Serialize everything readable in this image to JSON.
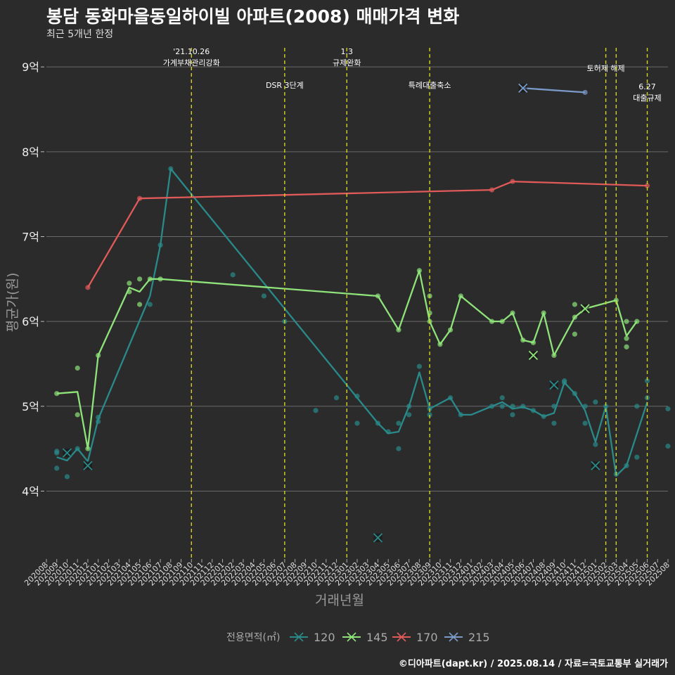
{
  "header": {
    "title": "봉담 동화마을동일하이빌 아파트(2008) 매매가격 변화",
    "subtitle": "최근 5개년 한정"
  },
  "caption": "©디아파트(dapt.kr) / 2025.08.14 / 자료=국토교통부 실거래가",
  "colors": {
    "background": "#2b2b2b",
    "grid": "#6a6a6a",
    "event_line": "#d4d420",
    "s120": "#2a8a8a",
    "s145": "#8fe37a",
    "s170": "#e05a5a",
    "s215": "#7a9ac8"
  },
  "chart_data": {
    "type": "line",
    "xlabel": "거래년월",
    "ylabel": "평균가(원)",
    "ylim": [
      3.2,
      9.25
    ],
    "y_ticks": [
      {
        "v": 4,
        "label": "4억"
      },
      {
        "v": 5,
        "label": "5억"
      },
      {
        "v": 6,
        "label": "6억"
      },
      {
        "v": 7,
        "label": "7억"
      },
      {
        "v": 8,
        "label": "8억"
      },
      {
        "v": 9,
        "label": "9억"
      }
    ],
    "x_ticks": [
      "202008",
      "202009",
      "202010",
      "202011",
      "202012",
      "202101",
      "202102",
      "202103",
      "202104",
      "202105",
      "202106",
      "202107",
      "202108",
      "202109",
      "202110",
      "202111",
      "202112",
      "202201",
      "202202",
      "202203",
      "202204",
      "202205",
      "202206",
      "202207",
      "202208",
      "202209",
      "202210",
      "202211",
      "202212",
      "202301",
      "202302",
      "202303",
      "202304",
      "202305",
      "202306",
      "202307",
      "202308",
      "202309",
      "202310",
      "202311",
      "202312",
      "202401",
      "202402",
      "202403",
      "202404",
      "202405",
      "202406",
      "202407",
      "202408",
      "202409",
      "202410",
      "202411",
      "202412",
      "202501",
      "202502",
      "202503",
      "202504",
      "202505",
      "202506",
      "202507",
      "202508"
    ],
    "grid": true,
    "legend": {
      "title": "전용면적(㎡)",
      "position": "bottom",
      "items": [
        "120",
        "145",
        "170",
        "215"
      ]
    },
    "events": [
      {
        "x": "2021-10",
        "label": "'21.10.26\n가계부채관리강화",
        "row": 0
      },
      {
        "x": "2022-07",
        "label": "DSR 3단계",
        "row": 2
      },
      {
        "x": "2023-01",
        "label": "1.3\n규제완화",
        "row": 0
      },
      {
        "x": "2023-09",
        "label": "특례대출축소",
        "row": 2
      },
      {
        "x": "2025-02",
        "label": "토허제 해제",
        "row": 1
      },
      {
        "x": "2025-03",
        "label": "",
        "row": 1
      },
      {
        "x": "2025-06",
        "label": "6.27\n대출규제",
        "row": 3
      }
    ],
    "series": [
      {
        "name": "120",
        "color_key": "s120",
        "line": [
          [
            "2020-09",
            4.4
          ],
          [
            "2020-10",
            4.36
          ],
          [
            "2020-11",
            4.5
          ],
          [
            "2020-12",
            4.35
          ],
          [
            "2021-01",
            4.85
          ],
          [
            "2021-06",
            6.3
          ],
          [
            "2021-07",
            6.9
          ],
          [
            "2021-08",
            7.8
          ],
          [
            "2023-04",
            4.8
          ],
          [
            "2023-05",
            4.68
          ],
          [
            "2023-06",
            4.7
          ],
          [
            "2023-07",
            5.0
          ],
          [
            "2023-08",
            5.4
          ],
          [
            "2023-09",
            4.97
          ],
          [
            "2023-11",
            5.1
          ],
          [
            "2023-12",
            4.9
          ],
          [
            "2024-01",
            4.9
          ],
          [
            "2024-03",
            5.0
          ],
          [
            "2024-04",
            5.05
          ],
          [
            "2024-05",
            4.97
          ],
          [
            "2024-06",
            4.99
          ],
          [
            "2024-07",
            4.95
          ],
          [
            "2024-08",
            4.88
          ],
          [
            "2024-09",
            4.92
          ],
          [
            "2024-10",
            5.28
          ],
          [
            "2024-11",
            5.15
          ],
          [
            "2024-12",
            4.95
          ],
          [
            "2025-01",
            4.58
          ],
          [
            "2025-02",
            5.0
          ],
          [
            "2025-03",
            4.18
          ],
          [
            "2025-04",
            4.3
          ],
          [
            "2025-06",
            5.05
          ]
        ],
        "points": [
          [
            "2020-09",
            4.47
          ],
          [
            "2020-09",
            4.45
          ],
          [
            "2020-09",
            4.27
          ],
          [
            "2020-10",
            4.17
          ],
          [
            "2020-11",
            4.5
          ],
          [
            "2021-01",
            4.87
          ],
          [
            "2021-01",
            4.82
          ],
          [
            "2021-06",
            6.2
          ],
          [
            "2021-07",
            6.9
          ],
          [
            "2021-08",
            7.8
          ],
          [
            "2022-02",
            6.55
          ],
          [
            "2022-05",
            6.3
          ],
          [
            "2022-07",
            6.0
          ],
          [
            "2022-10",
            4.95
          ],
          [
            "2022-12",
            5.1
          ],
          [
            "2023-02",
            5.12
          ],
          [
            "2023-02",
            4.8
          ],
          [
            "2023-04",
            4.8
          ],
          [
            "2023-05",
            4.7
          ],
          [
            "2023-06",
            4.8
          ],
          [
            "2023-06",
            4.5
          ],
          [
            "2023-07",
            4.9
          ],
          [
            "2023-07",
            5.0
          ],
          [
            "2023-08",
            5.47
          ],
          [
            "2023-09",
            4.97
          ],
          [
            "2023-09",
            4.9
          ],
          [
            "2023-11",
            5.1
          ],
          [
            "2023-12",
            4.9
          ],
          [
            "2024-03",
            5.0
          ],
          [
            "2024-04",
            5.1
          ],
          [
            "2024-04",
            5.0
          ],
          [
            "2024-05",
            5.0
          ],
          [
            "2024-05",
            4.9
          ],
          [
            "2024-06",
            5.0
          ],
          [
            "2024-07",
            4.95
          ],
          [
            "2024-08",
            4.88
          ],
          [
            "2024-09",
            4.8
          ],
          [
            "2024-09",
            5.0
          ],
          [
            "2024-10",
            5.28
          ],
          [
            "2024-10",
            5.3
          ],
          [
            "2024-11",
            5.15
          ],
          [
            "2024-12",
            4.8
          ],
          [
            "2024-12",
            5.0
          ],
          [
            "2025-01",
            5.05
          ],
          [
            "2025-01",
            4.55
          ],
          [
            "2025-02",
            5.0
          ],
          [
            "2025-03",
            4.2
          ],
          [
            "2025-04",
            4.3
          ],
          [
            "2025-05",
            4.4
          ],
          [
            "2025-05",
            5.0
          ],
          [
            "2025-06",
            5.3
          ],
          [
            "2025-06",
            5.1
          ],
          [
            "2025-08",
            4.97
          ],
          [
            "2025-08",
            4.53
          ]
        ],
        "crosses": [
          [
            "2020-10",
            4.45
          ],
          [
            "2020-12",
            4.3
          ],
          [
            "2023-04",
            3.45
          ],
          [
            "2024-09",
            5.25
          ],
          [
            "2025-01",
            4.3
          ]
        ]
      },
      {
        "name": "145",
        "color_key": "s145",
        "line": [
          [
            "2020-09",
            5.15
          ],
          [
            "2020-11",
            5.17
          ],
          [
            "2020-12",
            4.5
          ],
          [
            "2021-01",
            5.6
          ],
          [
            "2021-04",
            6.4
          ],
          [
            "2021-05",
            6.35
          ],
          [
            "2021-06",
            6.5
          ],
          [
            "2021-07",
            6.5
          ],
          [
            "2023-04",
            6.3
          ],
          [
            "2023-06",
            5.9
          ],
          [
            "2023-08",
            6.6
          ],
          [
            "2023-09",
            6.0
          ],
          [
            "2023-10",
            5.73
          ],
          [
            "2023-11",
            5.9
          ],
          [
            "2023-12",
            6.3
          ],
          [
            "2024-03",
            6.0
          ],
          [
            "2024-04",
            6.0
          ],
          [
            "2024-05",
            6.1
          ],
          [
            "2024-06",
            5.78
          ],
          [
            "2024-07",
            5.75
          ],
          [
            "2024-08",
            6.1
          ],
          [
            "2024-09",
            5.6
          ],
          [
            "2024-11",
            6.05
          ],
          [
            "2024-12",
            6.15
          ],
          [
            "2025-03",
            6.25
          ],
          [
            "2025-04",
            5.83
          ],
          [
            "2025-05",
            6.0
          ]
        ],
        "points": [
          [
            "2020-09",
            5.15
          ],
          [
            "2020-11",
            5.45
          ],
          [
            "2020-11",
            4.9
          ],
          [
            "2020-12",
            4.5
          ],
          [
            "2021-01",
            5.6
          ],
          [
            "2021-04",
            6.45
          ],
          [
            "2021-04",
            6.35
          ],
          [
            "2021-05",
            6.5
          ],
          [
            "2021-05",
            6.2
          ],
          [
            "2021-06",
            6.5
          ],
          [
            "2021-07",
            6.5
          ],
          [
            "2023-04",
            6.3
          ],
          [
            "2023-06",
            5.9
          ],
          [
            "2023-08",
            6.6
          ],
          [
            "2023-09",
            6.3
          ],
          [
            "2023-09",
            6.1
          ],
          [
            "2023-09",
            6.0
          ],
          [
            "2023-10",
            5.73
          ],
          [
            "2023-11",
            5.9
          ],
          [
            "2023-12",
            6.3
          ],
          [
            "2024-03",
            6.0
          ],
          [
            "2024-04",
            6.0
          ],
          [
            "2024-05",
            6.1
          ],
          [
            "2024-06",
            5.78
          ],
          [
            "2024-07",
            5.75
          ],
          [
            "2024-08",
            6.1
          ],
          [
            "2024-09",
            5.6
          ],
          [
            "2024-11",
            6.2
          ],
          [
            "2024-11",
            6.05
          ],
          [
            "2024-11",
            5.85
          ],
          [
            "2025-03",
            6.25
          ],
          [
            "2025-04",
            6.0
          ],
          [
            "2025-04",
            5.8
          ],
          [
            "2025-04",
            5.7
          ],
          [
            "2025-05",
            6.0
          ]
        ],
        "crosses": [
          [
            "2024-07",
            5.6
          ],
          [
            "2024-12",
            6.15
          ]
        ]
      },
      {
        "name": "170",
        "color_key": "s170",
        "line": [
          [
            "2020-12",
            6.4
          ],
          [
            "2021-05",
            7.45
          ],
          [
            "2024-03",
            7.55
          ],
          [
            "2024-05",
            7.65
          ],
          [
            "2025-06",
            7.6
          ]
        ],
        "points": [
          [
            "2020-12",
            6.4
          ],
          [
            "2021-05",
            7.45
          ],
          [
            "2024-03",
            7.55
          ],
          [
            "2024-05",
            7.65
          ],
          [
            "2025-06",
            7.6
          ]
        ],
        "crosses": []
      },
      {
        "name": "215",
        "color_key": "s215",
        "line": [
          [
            "2024-06",
            8.75
          ],
          [
            "2024-12",
            8.7
          ]
        ],
        "points": [
          [
            "2024-12",
            8.7
          ]
        ],
        "crosses": [
          [
            "2024-06",
            8.75
          ]
        ]
      }
    ]
  }
}
